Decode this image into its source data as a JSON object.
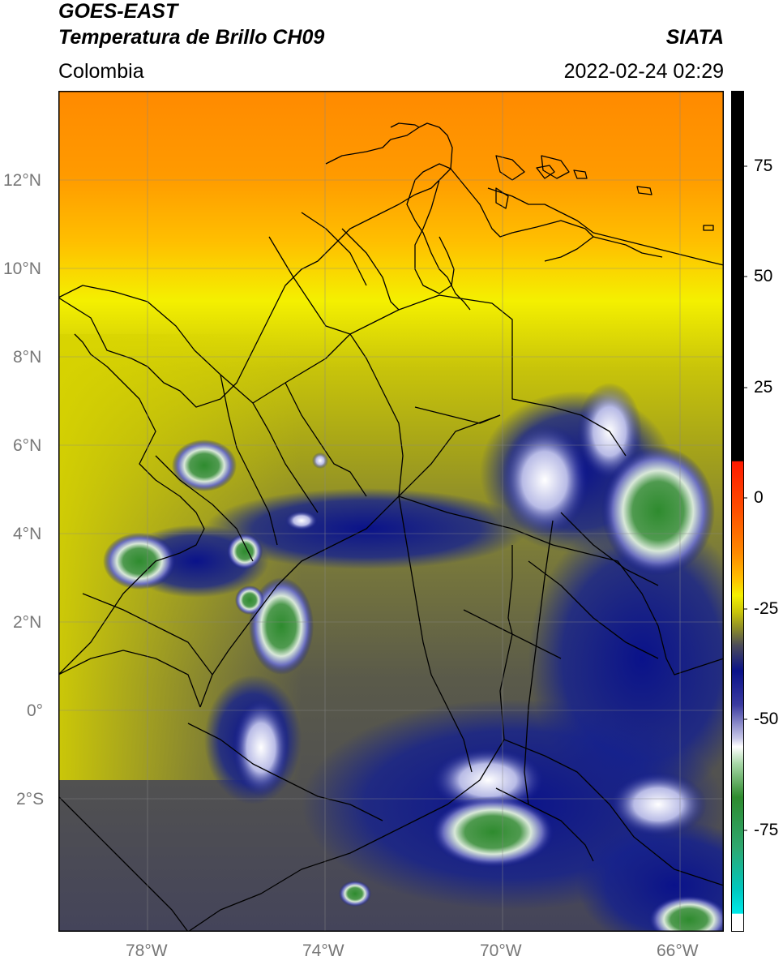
{
  "header": {
    "satellite": "GOES-EAST",
    "product": "Temperatura de Brillo CH09",
    "region": "Colombia",
    "org": "SIATA",
    "datetime": "2022-02-24 02:29"
  },
  "map": {
    "lon_ticks": [
      "78°W",
      "74°W",
      "70°W",
      "66°W"
    ],
    "lat_ticks": [
      "12°N",
      "10°N",
      "8°N",
      "6°N",
      "4°N",
      "2°N",
      "0°",
      "2°S"
    ],
    "lon_range": [
      -80,
      -65
    ],
    "lat_range": [
      -5,
      14
    ],
    "gridlines": true
  },
  "colorbar": {
    "ticks": [
      "75",
      "50",
      "25",
      "0",
      "-25",
      "-50",
      "-75"
    ],
    "range": [
      -95,
      95
    ],
    "colors": {
      "black": "#000000",
      "red": "#ff1a00",
      "orange": "#ff8a00",
      "yellow": "#f4f000",
      "olive": "#9a9a1a",
      "dark_gray": "#3f3f5a",
      "navy": "#0a128a",
      "white": "#ffffff",
      "green": "#2e8b2e",
      "cyan": "#00e0e0"
    }
  }
}
